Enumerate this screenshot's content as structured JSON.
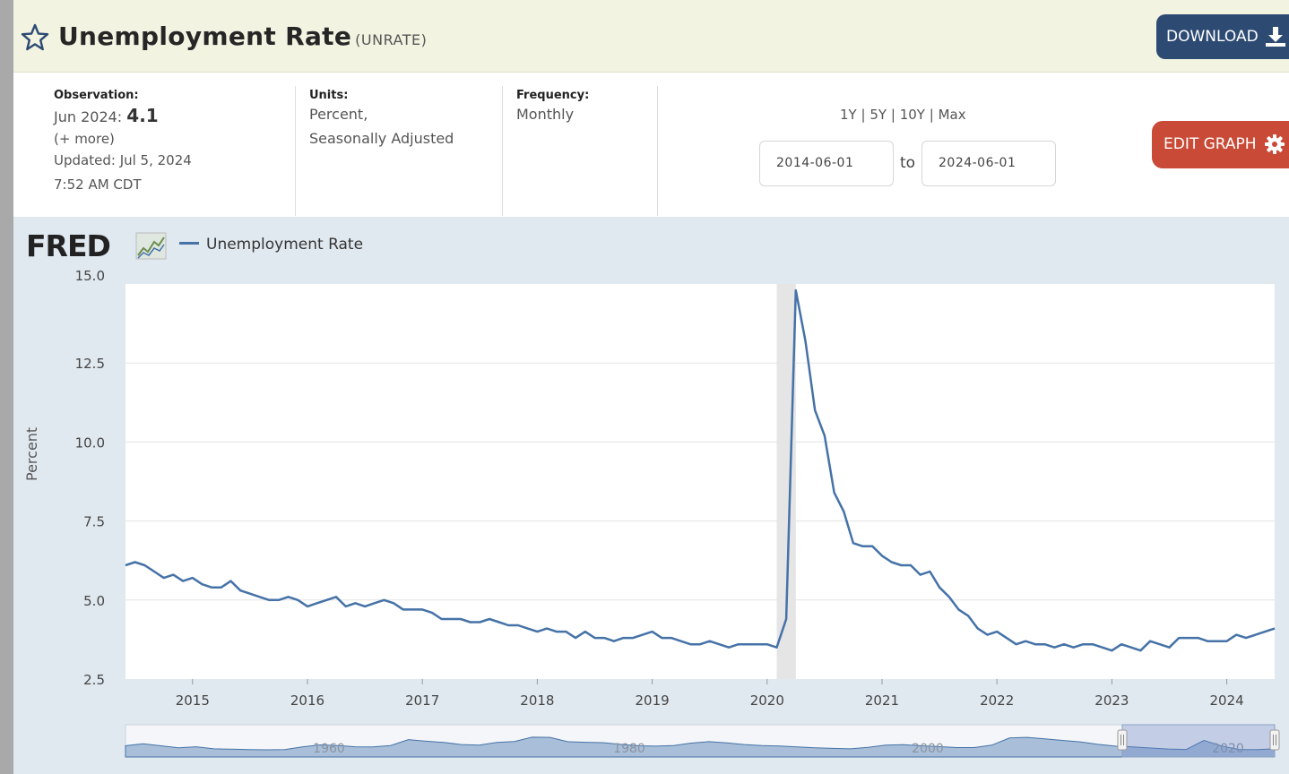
{
  "header": {
    "title": "Unemployment Rate",
    "series_id": "(UNRATE)",
    "download_label": "DOWNLOAD"
  },
  "info": {
    "observation_label": "Observation:",
    "observation_date": "Jun 2024:",
    "observation_value": "4.1",
    "more_link": "(+ more)",
    "updated_label": "Updated:",
    "updated_date": "Jul 5, 2024",
    "updated_time": "7:52 AM CDT",
    "units_label": "Units:",
    "units_line1": "Percent,",
    "units_line2": "Seasonally Adjusted",
    "frequency_label": "Frequency:",
    "frequency_value": "Monthly"
  },
  "controls": {
    "ranges": [
      "1Y",
      "5Y",
      "10Y",
      "Max"
    ],
    "separator": "|",
    "start_date": "2014-06-01",
    "to_label": "to",
    "end_date": "2024-06-01",
    "edit_label": "EDIT GRAPH"
  },
  "chart_data": {
    "type": "line",
    "logo_text": "FRED",
    "ylabel": "Percent",
    "ylim": [
      2.5,
      15.0
    ],
    "yticks": [
      "15.0",
      "12.5",
      "10.0",
      "7.5",
      "5.0",
      "2.5"
    ],
    "xticks": [
      "2015",
      "2016",
      "2017",
      "2018",
      "2019",
      "2020",
      "2021",
      "2022",
      "2023",
      "2024"
    ],
    "x_range": [
      "2014-06",
      "2024-06"
    ],
    "recession_shading": [
      [
        "2020-02",
        "2020-04"
      ]
    ],
    "grid": true,
    "series": [
      {
        "name": "Unemployment Rate",
        "color": "#4572a7",
        "values": [
          6.1,
          6.2,
          6.1,
          5.9,
          5.7,
          5.8,
          5.6,
          5.7,
          5.5,
          5.4,
          5.4,
          5.6,
          5.3,
          5.2,
          5.1,
          5.0,
          5.0,
          5.1,
          5.0,
          4.8,
          4.9,
          5.0,
          5.1,
          4.8,
          4.9,
          4.8,
          4.9,
          5.0,
          4.9,
          4.7,
          4.7,
          4.7,
          4.6,
          4.4,
          4.4,
          4.4,
          4.3,
          4.3,
          4.4,
          4.3,
          4.2,
          4.2,
          4.1,
          4.0,
          4.1,
          4.0,
          4.0,
          3.8,
          4.0,
          3.8,
          3.8,
          3.7,
          3.8,
          3.8,
          3.9,
          4.0,
          3.8,
          3.8,
          3.7,
          3.6,
          3.6,
          3.7,
          3.6,
          3.5,
          3.6,
          3.6,
          3.6,
          3.6,
          3.5,
          4.4,
          14.8,
          13.2,
          11.0,
          10.2,
          8.4,
          7.8,
          6.8,
          6.7,
          6.7,
          6.4,
          6.2,
          6.1,
          6.1,
          5.8,
          5.9,
          5.4,
          5.1,
          4.7,
          4.5,
          4.1,
          3.9,
          4.0,
          3.8,
          3.6,
          3.7,
          3.6,
          3.6,
          3.5,
          3.6,
          3.5,
          3.6,
          3.6,
          3.5,
          3.4,
          3.6,
          3.5,
          3.4,
          3.7,
          3.6,
          3.5,
          3.8,
          3.8,
          3.8,
          3.7,
          3.7,
          3.7,
          3.9,
          3.8,
          3.9,
          4.0,
          4.1
        ]
      }
    ],
    "navigator": {
      "labels": [
        "1960",
        "1980",
        "2000",
        "2020"
      ],
      "values": [
        5.5,
        6.5,
        5.5,
        4.5,
        5.0,
        4.0,
        3.8,
        3.6,
        3.5,
        3.6,
        4.9,
        5.9,
        5.6,
        5.0,
        4.9,
        5.6,
        8.5,
        7.7,
        7.1,
        6.1,
        5.8,
        7.1,
        7.6,
        9.7,
        9.6,
        7.5,
        7.2,
        7.0,
        6.2,
        5.5,
        5.3,
        5.6,
        6.8,
        7.5,
        6.9,
        6.1,
        5.6,
        5.4,
        4.9,
        4.5,
        4.2,
        4.0,
        4.7,
        5.8,
        6.0,
        5.5,
        5.1,
        4.6,
        4.6,
        5.8,
        9.3,
        9.6,
        8.9,
        8.1,
        7.4,
        6.2,
        5.3,
        4.9,
        4.4,
        3.9,
        3.7,
        8.1,
        5.4,
        3.6,
        3.6,
        4.0
      ]
    }
  }
}
